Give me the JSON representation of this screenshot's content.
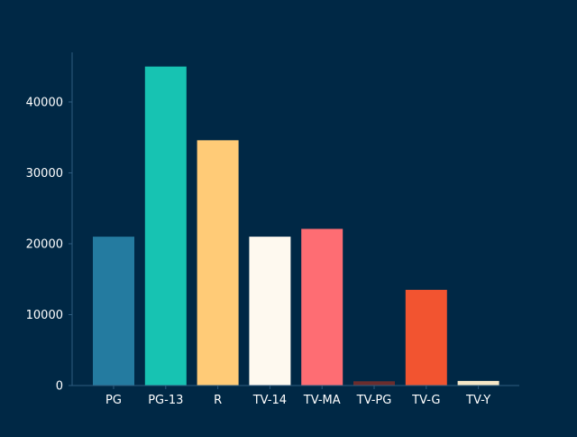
{
  "chart_data": {
    "type": "bar",
    "title": "",
    "xlabel": "",
    "ylabel": "",
    "categories": [
      "PG",
      "PG-13",
      "R",
      "TV-14",
      "TV-MA",
      "TV-PG",
      "TV-G",
      "TV-Y"
    ],
    "values": [
      21000,
      45000,
      34600,
      21000,
      22100,
      600,
      13500,
      650
    ],
    "colors": [
      "#247BA0",
      "#17C3B2",
      "#FFCB77",
      "#FEF9EF",
      "#FE6D73",
      "#6B2D2D",
      "#F25430",
      "#F6E7C7"
    ],
    "ylim": [
      0,
      47000
    ],
    "yticks": [
      0,
      10000,
      20000,
      30000,
      40000
    ],
    "ytick_labels": [
      "0",
      "10000",
      "20000",
      "30000",
      "40000"
    ],
    "grid": false,
    "legend": "none",
    "background_color": "#002845",
    "axis_color": "#2E5C80",
    "text_color": "#FFFFFF"
  }
}
